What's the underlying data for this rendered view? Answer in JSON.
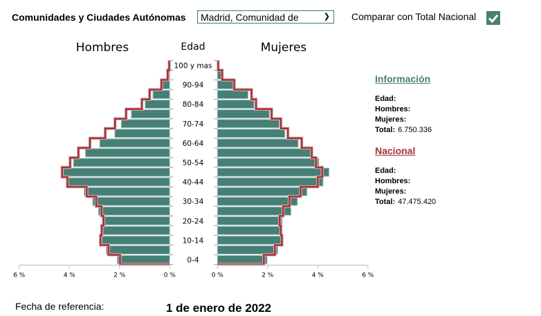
{
  "header": {
    "region_label": "Comunidades y Ciudades Autónomas",
    "region_selected": "Madrid, Comunidad de",
    "compare_label": "Comparar con Total Nacional",
    "compare_checked": true
  },
  "info": {
    "title": "Información",
    "edad_label": "Edad:",
    "hombres_label": "Hombres:",
    "mujeres_label": "Mujeres:",
    "total_label": "Total:",
    "total_value": "6.750.336"
  },
  "nacional": {
    "title": "Nacional",
    "edad_label": "Edad:",
    "hombres_label": "Hombres:",
    "mujeres_label": "Mujeres:",
    "total_label": "Total:",
    "total_value": "47.475.420"
  },
  "footer": {
    "fecha_label": "Fecha de referencia:",
    "fecha_value": "1 de enero de 2022"
  },
  "colors": {
    "region": "#467f76",
    "national": "#a03338",
    "accent": "#4a7f74"
  },
  "chart_data": {
    "type": "bar",
    "subtype": "population-pyramid",
    "title_left": "Hombres",
    "title_center": "Edad",
    "title_right": "Mujeres",
    "bin_order": "youngest-first, 5-year groups, 21 groups",
    "tick_labels": [
      "0-4",
      "10-14",
      "20-24",
      "30-34",
      "40-44",
      "50-54",
      "60-64",
      "70-74",
      "80-84",
      "90-94",
      "100 y mas"
    ],
    "x_ticks": [
      "0 %",
      "2 %",
      "4 %",
      "6 %"
    ],
    "xlim": [
      0,
      6
    ],
    "unit": "%",
    "series": [
      {
        "name": "Hombres Madrid",
        "side": "left",
        "style": "bar",
        "values": [
          2.09,
          2.53,
          2.7,
          2.66,
          2.63,
          2.84,
          3.07,
          3.41,
          4.04,
          4.24,
          3.84,
          3.36,
          2.79,
          2.19,
          1.93,
          1.53,
          0.98,
          0.67,
          0.28,
          0.04,
          0.01
        ]
      },
      {
        "name": "Hombres Nacional",
        "side": "left",
        "style": "outline",
        "values": [
          1.98,
          2.44,
          2.76,
          2.71,
          2.64,
          2.72,
          2.93,
          3.31,
          4.08,
          4.29,
          3.97,
          3.64,
          3.18,
          2.57,
          2.18,
          1.74,
          1.11,
          0.8,
          0.33,
          0.08,
          0.02
        ]
      },
      {
        "name": "Mujeres Madrid",
        "side": "right",
        "style": "bar",
        "values": [
          1.98,
          2.4,
          2.62,
          2.51,
          2.58,
          2.93,
          3.19,
          3.57,
          4.21,
          4.45,
          4.04,
          3.71,
          3.22,
          2.69,
          2.46,
          2.07,
          1.46,
          1.22,
          0.64,
          0.16,
          0.02
        ]
      },
      {
        "name": "Mujeres Nacional",
        "side": "right",
        "style": "outline",
        "values": [
          1.85,
          2.29,
          2.57,
          2.53,
          2.48,
          2.62,
          2.87,
          3.31,
          4.0,
          4.18,
          3.93,
          3.76,
          3.36,
          2.81,
          2.53,
          2.16,
          1.54,
          1.36,
          0.67,
          0.19,
          0.03
        ]
      }
    ]
  }
}
